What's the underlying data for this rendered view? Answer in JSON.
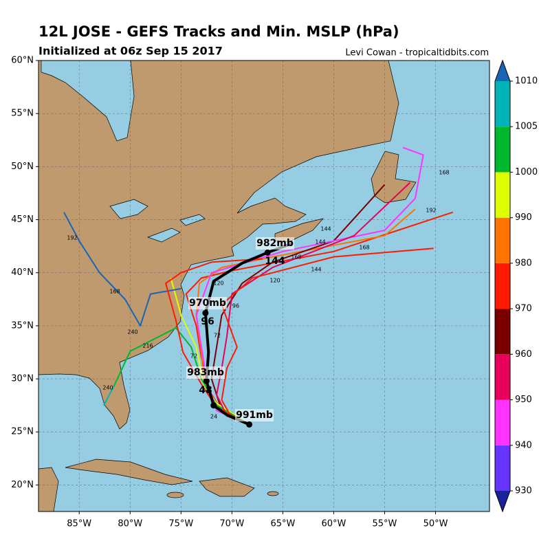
{
  "header": {
    "title": "12L JOSE - GEFS Tracks and Min. MSLP (hPa)",
    "subtitle": "Initialized at 06z Sep 15 2017",
    "credit": "Levi Cowan - tropicaltidbits.com"
  },
  "map": {
    "lonlim": [
      -89,
      -44.7
    ],
    "latlim": [
      17.5,
      60
    ],
    "lonticks": [
      {
        "value": -85,
        "label": "85°W"
      },
      {
        "value": -80,
        "label": "80°W"
      },
      {
        "value": -75,
        "label": "75°W"
      },
      {
        "value": -70,
        "label": "70°W"
      },
      {
        "value": -65,
        "label": "65°W"
      },
      {
        "value": -60,
        "label": "60°W"
      },
      {
        "value": -55,
        "label": "55°W"
      },
      {
        "value": -50,
        "label": "50°W"
      }
    ],
    "latticks": [
      {
        "value": 20,
        "label": "20°N"
      },
      {
        "value": 25,
        "label": "25°N"
      },
      {
        "value": 30,
        "label": "30°N"
      },
      {
        "value": 35,
        "label": "35°N"
      },
      {
        "value": 40,
        "label": "40°N"
      },
      {
        "value": 45,
        "label": "45°N"
      },
      {
        "value": 50,
        "label": "50°N"
      },
      {
        "value": 55,
        "label": "55°N"
      },
      {
        "value": 60,
        "label": "60°N"
      }
    ],
    "grid": true,
    "tracks": [
      {
        "color": "#ff1a00",
        "lon": [
          -68.3,
          -71,
          -72.3,
          -73,
          -73.5,
          -74.5,
          -73,
          -70,
          -60,
          -48.3
        ],
        "lat": [
          25.7,
          27,
          29,
          32,
          35,
          38,
          39.5,
          40.2,
          42,
          45.7
        ]
      },
      {
        "color": "#ff7300",
        "lon": [
          -68.3,
          -71.5,
          -72.8,
          -73,
          -73.5,
          -73.2,
          -71,
          -66,
          -55,
          -52
        ],
        "lat": [
          25.7,
          27.3,
          30,
          32.5,
          36,
          39,
          40.5,
          41.5,
          43.5,
          46
        ]
      },
      {
        "color": "#7a0000",
        "lon": [
          -68.3,
          -71,
          -72,
          -71.5,
          -71,
          -69,
          -66,
          -60,
          -55
        ],
        "lat": [
          25.7,
          27,
          30,
          33,
          36,
          39,
          41,
          43,
          48.3
        ]
      },
      {
        "color": "#ddff00",
        "lon": [
          -68.3,
          -71.5,
          -72.8,
          -73.5,
          -75,
          -76
        ],
        "lat": [
          25.7,
          27.7,
          29.5,
          33,
          36,
          39.5
        ]
      },
      {
        "color": "#00b82e",
        "lon": [
          -68.3,
          -71.5,
          -73,
          -74,
          -75.5,
          -80,
          -81.6
        ],
        "lat": [
          25.7,
          27.5,
          30,
          33,
          34.8,
          32.6,
          29.3
        ]
      },
      {
        "color": "#00b3b8",
        "lon": [
          -81.6,
          -82.6
        ],
        "lat": [
          29.3,
          27.5
        ]
      },
      {
        "color": "#1a64b5",
        "lon": [
          -75,
          -78,
          -79,
          -80.5,
          -83,
          -85,
          -86.5
        ],
        "lat": [
          38.5,
          38,
          35,
          37.5,
          40,
          43,
          45.7
        ]
      },
      {
        "color": "#ff33ff",
        "lon": [
          -68.3,
          -71.5,
          -72.5,
          -73,
          -73.5,
          -72,
          -65,
          -55,
          -52,
          -51.2,
          -53.2
        ],
        "lat": [
          25.7,
          27,
          30,
          33,
          36,
          40,
          42,
          44,
          47,
          51.1,
          51.8
        ]
      },
      {
        "color": "#e8005a",
        "lon": [
          -68.3,
          -70.5,
          -71.5,
          -71,
          -70.5,
          -70,
          -66,
          -58,
          -52.5
        ],
        "lat": [
          25.7,
          26.5,
          28.5,
          31,
          34,
          38,
          40.5,
          43.5,
          48.5
        ]
      },
      {
        "color": "#ff1a00",
        "lon": [
          -68.3,
          -70,
          -71,
          -70.5,
          -69.5,
          -71,
          -68,
          -60,
          -50.2
        ],
        "lat": [
          25.7,
          26.3,
          28,
          31,
          33,
          37,
          39.5,
          41.5,
          42.3
        ]
      },
      {
        "color": "#ff1a00",
        "lon": [
          -68.3,
          -71.5,
          -73,
          -74.8,
          -75.5,
          -76.5,
          -75,
          -72,
          -67
        ],
        "lat": [
          25.7,
          27.3,
          29.5,
          32.5,
          35.5,
          39,
          40,
          41,
          41.3
        ]
      },
      {
        "color": "#000000",
        "lon": [
          -68.3,
          -70.5,
          -71.8,
          -72.5,
          -72.3,
          -72.6,
          -71.8,
          -69,
          -66.5,
          -64
        ],
        "lat": [
          25.7,
          26.6,
          27.5,
          29.8,
          32.5,
          36.2,
          39.2,
          40.9,
          41.9,
          42.8
        ]
      }
    ],
    "labels": [
      "991mb",
      "983mb",
      "48",
      "970mb",
      "96",
      "982mb",
      "144"
    ],
    "hour_labels": [
      "24",
      "72",
      "72",
      "120",
      "120",
      "144",
      "144",
      "144",
      "168",
      "168",
      "168",
      "192",
      "192",
      "216",
      "240",
      "240",
      "168",
      "96"
    ]
  },
  "colorbar": {
    "levels": [
      930,
      940,
      950,
      960,
      970,
      980,
      990,
      1000,
      1005,
      1010
    ],
    "colors": [
      "#6633ff",
      "#ff33ff",
      "#e8005a",
      "#7a0000",
      "#ff1a00",
      "#ff7300",
      "#ddff00",
      "#00b82e",
      "#00b3b8"
    ],
    "under": "#1a2199",
    "over": "#1a64b5"
  }
}
